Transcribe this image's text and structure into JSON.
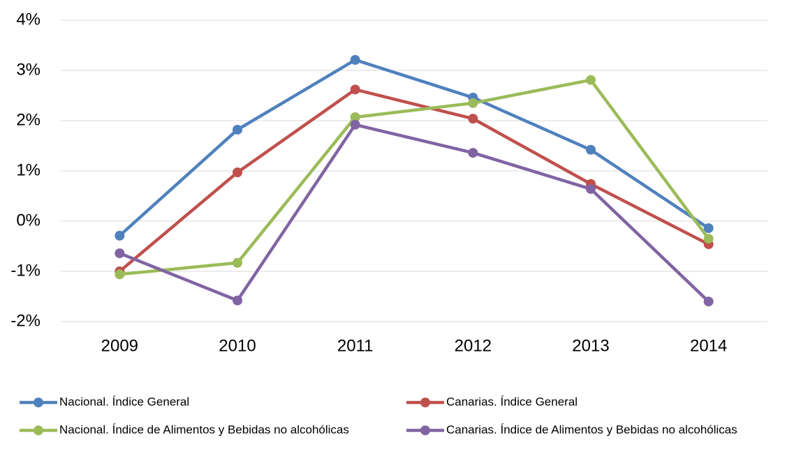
{
  "chart_data": {
    "type": "line",
    "categories": [
      "2009",
      "2010",
      "2011",
      "2012",
      "2013",
      "2014"
    ],
    "series": [
      {
        "name": "Nacional. Índice General",
        "color": "#4f81bd",
        "values": [
          -0.29,
          1.82,
          3.21,
          2.46,
          1.42,
          -0.14
        ]
      },
      {
        "name": "Canarias. Índice General",
        "color": "#c0504d",
        "values": [
          -1.0,
          0.97,
          2.62,
          2.04,
          0.74,
          -0.46
        ]
      },
      {
        "name": "Nacional. Índice de Alimentos y Bebidas no alcohólicas",
        "color": "#9bbb59",
        "values": [
          -1.06,
          -0.83,
          2.07,
          2.35,
          2.81,
          -0.35
        ]
      },
      {
        "name": "Canarias. Índice de Alimentos y Bebidas no alcohólicas",
        "color": "#8064a2",
        "values": [
          -0.64,
          -1.58,
          1.92,
          1.36,
          0.64,
          -1.6
        ]
      }
    ],
    "ylim": [
      -2,
      4
    ],
    "yticks": [
      {
        "value": -2,
        "label": "-2%"
      },
      {
        "value": -1,
        "label": "-1%"
      },
      {
        "value": 0,
        "label": "0%"
      },
      {
        "value": 1,
        "label": "1%"
      },
      {
        "value": 2,
        "label": "2%"
      },
      {
        "value": 3,
        "label": "3%"
      },
      {
        "value": 4,
        "label": "4%"
      }
    ],
    "grid": true,
    "legend": "bottom"
  }
}
